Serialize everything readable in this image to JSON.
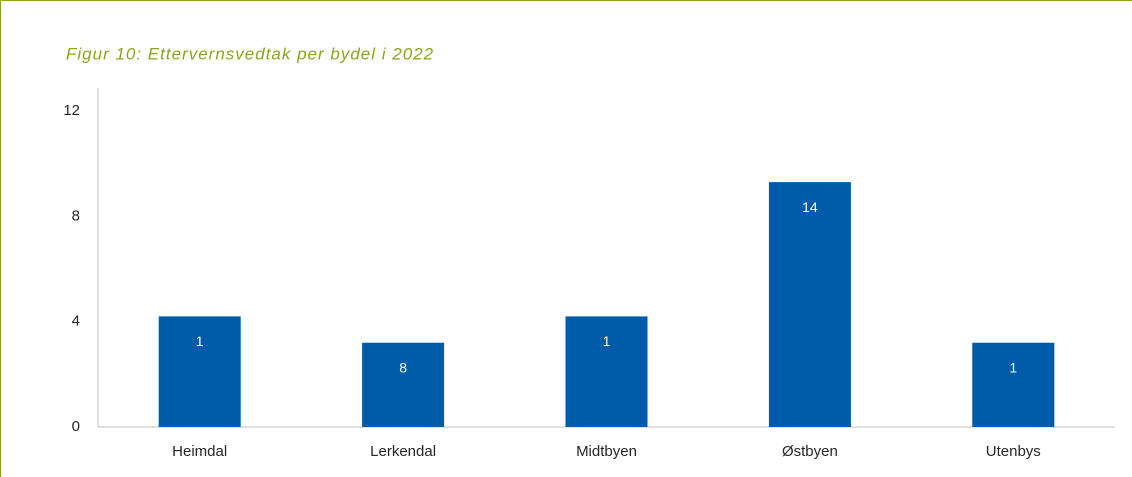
{
  "chart_data": {
    "type": "bar",
    "title": "Figur 10: Ettervernsvedtak per bydel i 2022",
    "categories": [
      "Heimdal",
      "Lerkendal",
      "Midtbyen",
      "Østbyen",
      "Utenbys"
    ],
    "values": [
      4.2,
      3.2,
      4.2,
      9.3,
      3.2
    ],
    "bar_labels": [
      "1",
      "8",
      "1",
      "14",
      "1"
    ],
    "color": "#005ba8",
    "ylim": [
      0,
      12
    ],
    "yticks": [
      0,
      4,
      8,
      12
    ],
    "grid": false
  }
}
